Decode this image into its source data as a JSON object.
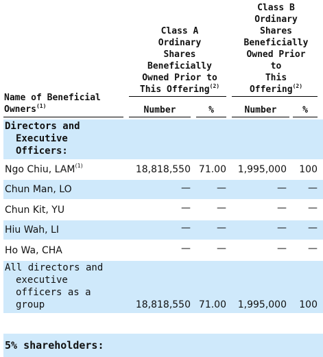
{
  "header": {
    "name_col": "Name of Beneficial Owners",
    "name_col_note": "(1)",
    "class_a_lines": [
      "Class A",
      "Ordinary",
      "Shares",
      "Beneficially",
      "Owned Prior to",
      "This Offering"
    ],
    "class_a_note": "(2)",
    "class_b_lines": [
      "Class B",
      "Ordinary",
      "Shares",
      "Beneficially",
      "Owned Prior",
      "to",
      "This",
      "Offering"
    ],
    "class_b_note": "(2)",
    "number_label": "Number",
    "percent_label": "%"
  },
  "sections": {
    "directors": [
      "Directors and",
      "Executive",
      "Officers:"
    ],
    "five_percent": "5% shareholders:"
  },
  "rows": [
    {
      "name": "Ngo Chiu, LAM",
      "note": "(1)",
      "a_number": "18,818,550",
      "a_percent": "71.00",
      "b_number": "1,995,000",
      "b_percent": "100"
    },
    {
      "name": "Chun Man, LO",
      "a_number": "—",
      "a_percent": "—",
      "b_number": "—",
      "b_percent": "—"
    },
    {
      "name": "Chun Kit, YU",
      "a_number": "—",
      "a_percent": "—",
      "b_number": "—",
      "b_percent": "—"
    },
    {
      "name": "Hiu Wah, LI",
      "a_number": "—",
      "a_percent": "—",
      "b_number": "—",
      "b_percent": "—"
    },
    {
      "name": "Ho Wa, CHA",
      "a_number": "—",
      "a_percent": "—",
      "b_number": "—",
      "b_percent": "—"
    }
  ],
  "group_row": {
    "name_lines": [
      "All directors and",
      "executive",
      "officers as a",
      "group"
    ],
    "a_number": "18,818,550",
    "a_percent": "71.00",
    "b_number": "1,995,000",
    "b_percent": "100"
  }
}
